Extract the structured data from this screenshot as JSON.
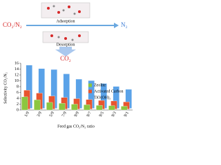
{
  "diagram": {
    "feed": "CO₂/N₂",
    "adsorption": "Adsorption",
    "product": "N₂",
    "desorption": "Desorption",
    "released": "CO₂"
  },
  "chart_data": {
    "type": "bar",
    "x_label": "Feed gas CO₂/N₂ ratio",
    "y_label": "Selectivity CO₂/N₂",
    "categories": [
      "1/9",
      "3/9",
      "5/9",
      "7/9",
      "9/9",
      "9/7",
      "9/5",
      "9/3",
      "9/1"
    ],
    "series": [
      {
        "name": "Zeolite",
        "color": "#8cc63f",
        "values": [
          4.5,
          3.5,
          2.6,
          2.3,
          2.0,
          1.8,
          1.6,
          1.5,
          1.3
        ]
      },
      {
        "name": "Activated Carbon",
        "color": "#e8552e",
        "values": [
          6.5,
          5.5,
          4.5,
          4.0,
          3.6,
          3.3,
          3.0,
          2.8,
          2.5
        ]
      },
      {
        "name": "TiO(OH)₂",
        "color": "#5aa2e8",
        "values": [
          14.8,
          13.6,
          13.3,
          11.8,
          10.0,
          9.5,
          8.5,
          7.5,
          6.5
        ]
      }
    ],
    "ylim": [
      0,
      16
    ],
    "yticks": [
      0,
      2,
      4,
      6,
      8,
      10,
      12,
      14,
      16
    ],
    "legend": "right"
  }
}
